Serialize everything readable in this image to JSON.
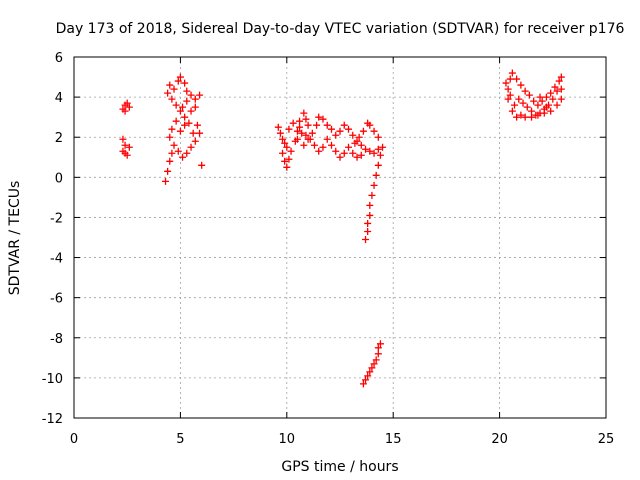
{
  "chart_data": {
    "type": "scatter",
    "title": "Day 173 of 2018, Sidereal Day-to-day VTEC variation (SDTVAR) for receiver p176",
    "xlabel": "GPS time / hours",
    "ylabel": "SDTVAR / TECUs",
    "xlim": [
      0,
      25
    ],
    "ylim": [
      -12,
      6
    ],
    "xticks": [
      0,
      5,
      10,
      15,
      20,
      25
    ],
    "yticks": [
      -12,
      -10,
      -8,
      -6,
      -4,
      -2,
      0,
      2,
      4,
      6
    ],
    "grid": true,
    "marker": "+",
    "color": "#ff0000",
    "series": [
      {
        "points": [
          [
            2.3,
            3.4
          ],
          [
            2.4,
            3.6
          ],
          [
            2.5,
            3.7
          ],
          [
            2.6,
            3.5
          ],
          [
            2.4,
            3.3
          ],
          [
            2.3,
            1.9
          ],
          [
            2.4,
            1.6
          ],
          [
            2.3,
            1.3
          ],
          [
            2.5,
            1.1
          ],
          [
            2.6,
            1.5
          ],
          [
            2.4,
            1.2
          ],
          [
            4.3,
            -0.2
          ],
          [
            4.4,
            0.3
          ],
          [
            4.5,
            0.8
          ],
          [
            4.6,
            1.2
          ],
          [
            4.7,
            1.6
          ],
          [
            4.9,
            1.3
          ],
          [
            5.1,
            1.0
          ],
          [
            5.3,
            1.2
          ],
          [
            5.5,
            1.5
          ],
          [
            5.7,
            1.8
          ],
          [
            5.9,
            2.2
          ],
          [
            5.8,
            2.6
          ],
          [
            5.6,
            2.2
          ],
          [
            5.4,
            2.7
          ],
          [
            5.2,
            3.0
          ],
          [
            5.0,
            3.3
          ],
          [
            4.8,
            3.6
          ],
          [
            4.6,
            3.9
          ],
          [
            4.4,
            4.2
          ],
          [
            4.5,
            4.6
          ],
          [
            4.7,
            4.4
          ],
          [
            4.9,
            4.8
          ],
          [
            5.0,
            5.0
          ],
          [
            5.2,
            4.7
          ],
          [
            5.3,
            4.3
          ],
          [
            5.5,
            4.1
          ],
          [
            5.7,
            3.9
          ],
          [
            5.9,
            4.1
          ],
          [
            5.7,
            3.5
          ],
          [
            5.5,
            3.3
          ],
          [
            5.3,
            3.8
          ],
          [
            5.1,
            3.5
          ],
          [
            4.8,
            2.8
          ],
          [
            4.6,
            2.4
          ],
          [
            4.5,
            2.0
          ],
          [
            5.0,
            2.3
          ],
          [
            5.2,
            2.6
          ],
          [
            6.0,
            0.6
          ],
          [
            9.6,
            2.5
          ],
          [
            9.7,
            2.2
          ],
          [
            9.8,
            1.9
          ],
          [
            9.9,
            1.7
          ],
          [
            10.0,
            1.5
          ],
          [
            9.8,
            1.2
          ],
          [
            9.9,
            0.8
          ],
          [
            10.0,
            0.5
          ],
          [
            10.1,
            0.9
          ],
          [
            10.2,
            1.3
          ],
          [
            10.4,
            1.8
          ],
          [
            10.5,
            2.3
          ],
          [
            10.6,
            2.8
          ],
          [
            10.8,
            3.2
          ],
          [
            10.9,
            2.9
          ],
          [
            11.0,
            2.6
          ],
          [
            10.7,
            2.2
          ],
          [
            10.5,
            1.9
          ],
          [
            10.8,
            1.6
          ],
          [
            11.0,
            1.9
          ],
          [
            11.2,
            2.2
          ],
          [
            11.4,
            2.6
          ],
          [
            11.5,
            3.0
          ],
          [
            11.7,
            2.9
          ],
          [
            11.9,
            2.6
          ],
          [
            12.1,
            2.4
          ],
          [
            12.3,
            2.1
          ],
          [
            12.5,
            2.3
          ],
          [
            12.7,
            2.6
          ],
          [
            12.9,
            2.4
          ],
          [
            13.1,
            2.1
          ],
          [
            13.3,
            1.8
          ],
          [
            13.5,
            1.6
          ],
          [
            13.7,
            1.4
          ],
          [
            13.9,
            1.3
          ],
          [
            14.1,
            1.2
          ],
          [
            14.3,
            1.4
          ],
          [
            14.5,
            1.5
          ],
          [
            14.3,
            2.0
          ],
          [
            14.1,
            2.3
          ],
          [
            13.9,
            2.6
          ],
          [
            13.8,
            2.7
          ],
          [
            13.6,
            2.3
          ],
          [
            13.4,
            2.0
          ],
          [
            13.2,
            1.7
          ],
          [
            12.9,
            1.5
          ],
          [
            12.7,
            1.2
          ],
          [
            12.5,
            1.0
          ],
          [
            12.3,
            1.3
          ],
          [
            12.1,
            1.6
          ],
          [
            11.9,
            1.9
          ],
          [
            11.7,
            1.5
          ],
          [
            11.5,
            1.3
          ],
          [
            11.3,
            1.6
          ],
          [
            11.1,
            1.9
          ],
          [
            10.9,
            2.1
          ],
          [
            10.6,
            2.5
          ],
          [
            10.3,
            2.7
          ],
          [
            10.1,
            2.4
          ],
          [
            13.1,
            1.2
          ],
          [
            13.3,
            1.0
          ],
          [
            13.5,
            1.1
          ],
          [
            14.4,
            1.1
          ],
          [
            14.3,
            0.6
          ],
          [
            14.2,
            0.1
          ],
          [
            14.1,
            -0.4
          ],
          [
            14.0,
            -0.9
          ],
          [
            13.9,
            -1.4
          ],
          [
            13.9,
            -1.9
          ],
          [
            13.8,
            -2.3
          ],
          [
            13.8,
            -2.7
          ],
          [
            13.7,
            -3.1
          ],
          [
            13.6,
            -10.3
          ],
          [
            13.7,
            -10.1
          ],
          [
            13.8,
            -9.9
          ],
          [
            13.9,
            -9.7
          ],
          [
            14.0,
            -9.5
          ],
          [
            14.1,
            -9.3
          ],
          [
            14.2,
            -9.1
          ],
          [
            14.3,
            -8.8
          ],
          [
            14.3,
            -8.5
          ],
          [
            14.4,
            -8.3
          ],
          [
            20.3,
            4.7
          ],
          [
            20.4,
            4.4
          ],
          [
            20.5,
            4.9
          ],
          [
            20.6,
            5.2
          ],
          [
            20.8,
            4.9
          ],
          [
            21.0,
            4.6
          ],
          [
            21.2,
            4.3
          ],
          [
            21.4,
            4.1
          ],
          [
            21.6,
            3.8
          ],
          [
            21.8,
            3.6
          ],
          [
            22.0,
            3.8
          ],
          [
            22.2,
            4.0
          ],
          [
            22.4,
            4.2
          ],
          [
            22.6,
            4.5
          ],
          [
            22.8,
            4.8
          ],
          [
            22.9,
            5.0
          ],
          [
            22.7,
            4.3
          ],
          [
            22.5,
            3.9
          ],
          [
            22.3,
            3.6
          ],
          [
            22.1,
            3.4
          ],
          [
            21.9,
            3.2
          ],
          [
            21.7,
            3.1
          ],
          [
            21.5,
            3.3
          ],
          [
            21.3,
            3.5
          ],
          [
            21.1,
            3.7
          ],
          [
            20.9,
            3.9
          ],
          [
            20.7,
            3.6
          ],
          [
            20.6,
            3.3
          ],
          [
            20.8,
            3.0
          ],
          [
            21.0,
            3.1
          ],
          [
            21.2,
            3.0
          ],
          [
            21.5,
            3.0
          ],
          [
            21.8,
            3.1
          ],
          [
            22.1,
            3.2
          ],
          [
            22.4,
            3.3
          ],
          [
            22.7,
            3.6
          ],
          [
            22.9,
            3.9
          ],
          [
            22.9,
            4.4
          ],
          [
            20.4,
            3.9
          ],
          [
            20.5,
            4.1
          ],
          [
            21.9,
            4.0
          ],
          [
            22.2,
            3.5
          ]
        ]
      }
    ]
  }
}
